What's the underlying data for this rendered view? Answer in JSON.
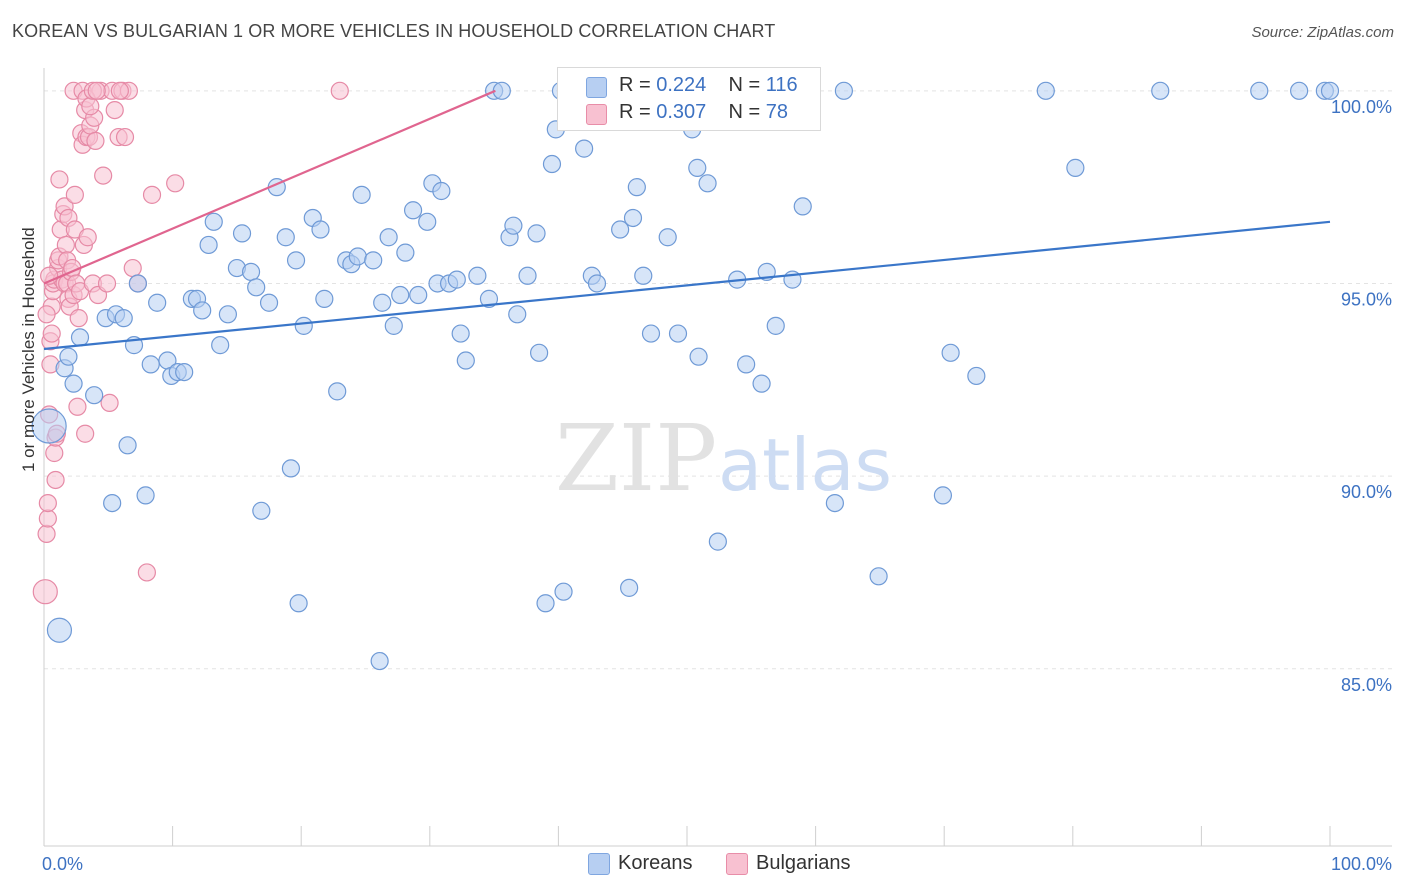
{
  "title": "KOREAN VS BULGARIAN 1 OR MORE VEHICLES IN HOUSEHOLD CORRELATION CHART",
  "source": "Source: ZipAtlas.com",
  "watermark": {
    "zip": "ZIP",
    "atlas": "atlas"
  },
  "legend": {
    "koreans": {
      "r_label": "R =",
      "r_value": "0.224",
      "n_label": "N =",
      "n_value": "116"
    },
    "bulgarians": {
      "r_label": "R =",
      "r_value": "0.307",
      "n_label": "N =",
      "n_value": "78"
    }
  },
  "bottom_legend": {
    "koreans": "Koreans",
    "bulgarians": "Bulgarians"
  },
  "colors": {
    "koreans_fill": "#b7cff2",
    "koreans_stroke": "#6f9ad6",
    "koreans_line": "#3a76c9",
    "bulgarians_fill": "#f8c1d1",
    "bulgarians_stroke": "#e68aa6",
    "bulgarians_line": "#e0658f",
    "axis_label": "#3d72c2",
    "grid": "#e3e3e3"
  },
  "chart_data": {
    "type": "scatter",
    "title": "KOREAN VS BULGARIAN 1 OR MORE VEHICLES IN HOUSEHOLD CORRELATION CHART",
    "xlabel": "",
    "ylabel": "1 or more Vehicles in Household",
    "xlim": [
      0,
      100
    ],
    "ylim": [
      80.4,
      100.8
    ],
    "x_tick_labels": [
      {
        "value": 0,
        "label": "0.0%"
      },
      {
        "value": 100,
        "label": "100.0%"
      }
    ],
    "y_tick_labels": [
      {
        "value": 85,
        "label": "85.0%"
      },
      {
        "value": 90,
        "label": "90.0%"
      },
      {
        "value": 95,
        "label": "95.0%"
      },
      {
        "value": 100,
        "label": "100.0%"
      }
    ],
    "series": [
      {
        "name": "Koreans",
        "trendline": {
          "x": [
            0,
            100
          ],
          "y": [
            93.3,
            96.6
          ]
        },
        "points": [
          [
            0.4,
            91.3
          ],
          [
            1.2,
            86.0
          ],
          [
            1.6,
            92.8
          ],
          [
            1.9,
            93.1
          ],
          [
            2.3,
            92.4
          ],
          [
            2.8,
            93.6
          ],
          [
            3.9,
            92.1
          ],
          [
            4.8,
            94.1
          ],
          [
            5.3,
            89.3
          ],
          [
            5.6,
            94.2
          ],
          [
            6.2,
            94.1
          ],
          [
            6.5,
            90.8
          ],
          [
            7.0,
            93.4
          ],
          [
            7.3,
            95.0
          ],
          [
            7.9,
            89.5
          ],
          [
            8.3,
            92.9
          ],
          [
            8.8,
            94.5
          ],
          [
            9.6,
            93.0
          ],
          [
            9.9,
            92.6
          ],
          [
            10.4,
            92.7
          ],
          [
            10.9,
            92.7
          ],
          [
            11.5,
            94.6
          ],
          [
            11.9,
            94.6
          ],
          [
            12.3,
            94.3
          ],
          [
            12.8,
            96.0
          ],
          [
            13.2,
            96.6
          ],
          [
            13.7,
            93.4
          ],
          [
            14.3,
            94.2
          ],
          [
            15.0,
            95.4
          ],
          [
            15.4,
            96.3
          ],
          [
            16.1,
            95.3
          ],
          [
            16.5,
            94.9
          ],
          [
            16.9,
            89.1
          ],
          [
            17.5,
            94.5
          ],
          [
            18.1,
            97.5
          ],
          [
            18.8,
            96.2
          ],
          [
            19.2,
            90.2
          ],
          [
            19.6,
            95.6
          ],
          [
            19.8,
            86.7
          ],
          [
            20.2,
            93.9
          ],
          [
            20.9,
            96.7
          ],
          [
            21.5,
            96.4
          ],
          [
            21.8,
            94.6
          ],
          [
            22.8,
            92.2
          ],
          [
            23.5,
            95.6
          ],
          [
            23.9,
            95.5
          ],
          [
            24.4,
            95.7
          ],
          [
            24.7,
            97.3
          ],
          [
            25.6,
            95.6
          ],
          [
            26.1,
            85.2
          ],
          [
            26.3,
            94.5
          ],
          [
            26.8,
            96.2
          ],
          [
            27.2,
            93.9
          ],
          [
            27.7,
            94.7
          ],
          [
            28.1,
            95.8
          ],
          [
            28.7,
            96.9
          ],
          [
            29.1,
            94.7
          ],
          [
            29.8,
            96.6
          ],
          [
            30.2,
            97.6
          ],
          [
            30.6,
            95.0
          ],
          [
            30.9,
            97.4
          ],
          [
            31.5,
            95.0
          ],
          [
            32.1,
            95.1
          ],
          [
            32.4,
            93.7
          ],
          [
            32.8,
            93.0
          ],
          [
            33.7,
            95.2
          ],
          [
            34.6,
            94.6
          ],
          [
            35.0,
            100.0
          ],
          [
            35.6,
            100.0
          ],
          [
            36.2,
            96.2
          ],
          [
            36.5,
            96.5
          ],
          [
            36.8,
            94.2
          ],
          [
            37.6,
            95.2
          ],
          [
            38.3,
            96.3
          ],
          [
            38.5,
            93.2
          ],
          [
            39.0,
            86.7
          ],
          [
            39.5,
            98.1
          ],
          [
            39.8,
            99.0
          ],
          [
            40.2,
            100.0
          ],
          [
            40.4,
            87.0
          ],
          [
            42.0,
            98.5
          ],
          [
            42.6,
            95.2
          ],
          [
            43.0,
            95.0
          ],
          [
            44.8,
            96.4
          ],
          [
            45.5,
            87.1
          ],
          [
            45.8,
            96.7
          ],
          [
            46.1,
            97.5
          ],
          [
            46.6,
            95.2
          ],
          [
            47.2,
            93.7
          ],
          [
            48.5,
            96.2
          ],
          [
            49.3,
            93.7
          ],
          [
            50.4,
            99.0
          ],
          [
            50.8,
            98.0
          ],
          [
            50.9,
            93.1
          ],
          [
            51.6,
            97.6
          ],
          [
            52.4,
            88.3
          ],
          [
            53.9,
            95.1
          ],
          [
            54.6,
            92.9
          ],
          [
            55.8,
            92.4
          ],
          [
            56.2,
            95.3
          ],
          [
            56.9,
            93.9
          ],
          [
            58.2,
            95.1
          ],
          [
            59.0,
            97.0
          ],
          [
            61.5,
            89.3
          ],
          [
            62.2,
            100.0
          ],
          [
            64.9,
            87.4
          ],
          [
            69.9,
            89.5
          ],
          [
            70.5,
            93.2
          ],
          [
            72.5,
            92.6
          ],
          [
            77.9,
            100.0
          ],
          [
            80.2,
            98.0
          ],
          [
            86.8,
            100.0
          ],
          [
            94.5,
            100.0
          ],
          [
            97.6,
            100.0
          ],
          [
            99.6,
            100.0
          ],
          [
            100.0,
            100.0
          ]
        ]
      },
      {
        "name": "Bulgarians",
        "trendline": {
          "x": [
            0,
            35.1
          ],
          "y": [
            95.0,
            100.0
          ]
        },
        "points": [
          [
            0.1,
            87.0
          ],
          [
            0.2,
            88.5
          ],
          [
            0.3,
            88.9
          ],
          [
            0.3,
            89.3
          ],
          [
            0.4,
            91.6
          ],
          [
            0.5,
            92.9
          ],
          [
            0.5,
            93.5
          ],
          [
            0.6,
            93.7
          ],
          [
            0.6,
            94.4
          ],
          [
            0.7,
            94.8
          ],
          [
            0.7,
            95.0
          ],
          [
            0.8,
            95.1
          ],
          [
            0.8,
            90.6
          ],
          [
            0.9,
            89.9
          ],
          [
            0.9,
            91.0
          ],
          [
            1.0,
            91.1
          ],
          [
            1.1,
            95.4
          ],
          [
            1.1,
            95.6
          ],
          [
            1.2,
            95.7
          ],
          [
            1.2,
            97.7
          ],
          [
            1.3,
            96.4
          ],
          [
            1.4,
            95.1
          ],
          [
            1.5,
            96.8
          ],
          [
            1.6,
            97.0
          ],
          [
            1.6,
            95.0
          ],
          [
            1.7,
            96.0
          ],
          [
            1.8,
            95.0
          ],
          [
            1.8,
            95.6
          ],
          [
            1.9,
            94.6
          ],
          [
            1.9,
            96.7
          ],
          [
            2.0,
            94.4
          ],
          [
            2.1,
            95.3
          ],
          [
            2.2,
            95.4
          ],
          [
            2.3,
            94.7
          ],
          [
            2.4,
            97.3
          ],
          [
            2.4,
            96.4
          ],
          [
            2.5,
            95.0
          ],
          [
            2.6,
            91.8
          ],
          [
            2.7,
            94.1
          ],
          [
            2.8,
            94.8
          ],
          [
            2.9,
            98.9
          ],
          [
            3.0,
            98.6
          ],
          [
            3.1,
            96.0
          ],
          [
            3.2,
            91.1
          ],
          [
            3.2,
            99.5
          ],
          [
            3.3,
            98.8
          ],
          [
            3.4,
            96.2
          ],
          [
            3.5,
            98.8
          ],
          [
            3.6,
            99.1
          ],
          [
            3.8,
            95.0
          ],
          [
            3.9,
            99.3
          ],
          [
            4.0,
            98.7
          ],
          [
            4.2,
            94.7
          ],
          [
            4.4,
            100.0
          ],
          [
            4.6,
            97.8
          ],
          [
            4.9,
            95.0
          ],
          [
            5.1,
            91.9
          ],
          [
            5.3,
            100.0
          ],
          [
            5.5,
            99.5
          ],
          [
            5.8,
            98.8
          ],
          [
            6.1,
            100.0
          ],
          [
            6.3,
            98.8
          ],
          [
            6.6,
            100.0
          ],
          [
            6.9,
            95.4
          ],
          [
            7.3,
            95.0
          ],
          [
            8.0,
            87.5
          ],
          [
            8.4,
            97.3
          ],
          [
            10.2,
            97.6
          ],
          [
            2.3,
            100.0
          ],
          [
            3.0,
            100.0
          ],
          [
            3.3,
            99.8
          ],
          [
            3.6,
            99.6
          ],
          [
            3.8,
            100.0
          ],
          [
            4.1,
            100.0
          ],
          [
            5.9,
            100.0
          ],
          [
            23.0,
            100.0
          ],
          [
            0.2,
            94.2
          ],
          [
            0.4,
            95.2
          ]
        ]
      }
    ]
  }
}
